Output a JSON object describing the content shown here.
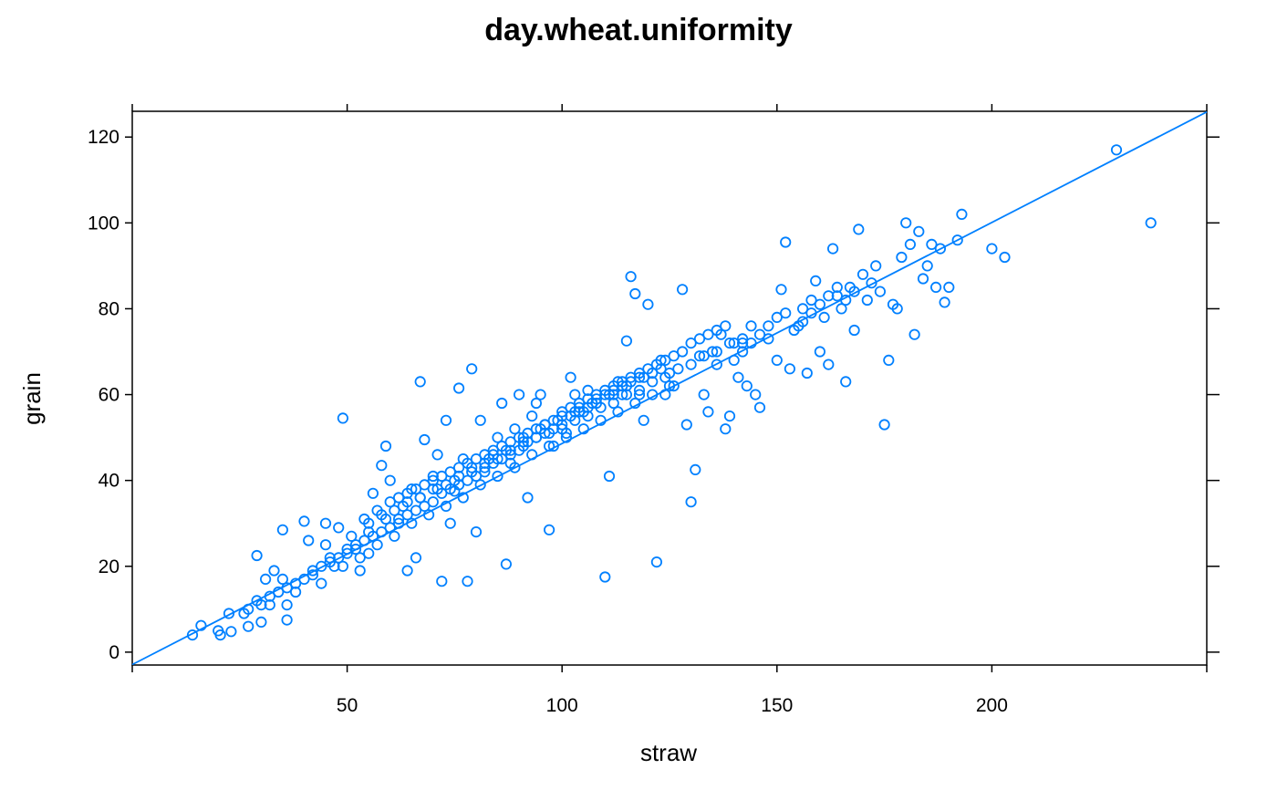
{
  "chart_data": {
    "type": "scatter",
    "title": "day.wheat.uniformity",
    "xlabel": "straw",
    "ylabel": "grain",
    "xlim": [
      0,
      250
    ],
    "ylim": [
      -3,
      126
    ],
    "x_ticks": [
      50,
      100,
      150,
      200
    ],
    "y_ticks": [
      0,
      20,
      40,
      60,
      80,
      100,
      120
    ],
    "x_tick_labels": [
      "50",
      "100",
      "150",
      "200"
    ],
    "y_tick_labels": [
      "0",
      "20",
      "40",
      "60",
      "80",
      "100",
      "120"
    ],
    "grid": false,
    "legend": "none",
    "colors": {
      "points": "#0080ff",
      "regression_line": "#0080ff",
      "axis": "#000000"
    },
    "regression_line": {
      "slope": 0.515,
      "intercept": -2.9
    },
    "series": [
      {
        "marker": "open-circle",
        "points": [
          [
            14,
            4
          ],
          [
            16,
            6.2
          ],
          [
            20,
            5
          ],
          [
            20.5,
            4
          ],
          [
            23,
            4.8
          ],
          [
            22.5,
            9
          ],
          [
            26,
            9
          ],
          [
            27,
            10
          ],
          [
            27,
            6
          ],
          [
            29,
            12
          ],
          [
            30,
            7
          ],
          [
            29,
            22.5
          ],
          [
            31,
            17
          ],
          [
            32,
            11
          ],
          [
            33,
            19
          ],
          [
            35,
            17
          ],
          [
            35,
            28.5
          ],
          [
            36,
            7.5
          ],
          [
            36,
            11
          ],
          [
            38,
            14
          ],
          [
            40,
            30.5
          ],
          [
            41,
            26
          ],
          [
            42,
            18
          ],
          [
            44,
            16
          ],
          [
            45,
            30
          ],
          [
            46,
            22
          ],
          [
            48,
            29
          ],
          [
            49,
            54.5
          ],
          [
            49,
            20
          ],
          [
            50,
            24
          ],
          [
            52,
            25
          ],
          [
            53,
            19
          ],
          [
            54,
            31
          ],
          [
            55,
            23
          ],
          [
            56,
            37
          ],
          [
            57,
            33
          ],
          [
            58,
            43.5
          ],
          [
            59,
            48
          ],
          [
            60,
            40
          ],
          [
            62,
            30
          ],
          [
            64,
            19
          ],
          [
            65,
            38
          ],
          [
            66,
            22
          ],
          [
            67,
            63
          ],
          [
            68,
            49.5
          ],
          [
            70,
            41
          ],
          [
            71,
            46
          ],
          [
            72,
            16.5
          ],
          [
            73,
            54
          ],
          [
            74,
            30
          ],
          [
            75,
            37.5
          ],
          [
            76,
            61.5
          ],
          [
            77,
            45
          ],
          [
            78,
            16.5
          ],
          [
            79,
            66
          ],
          [
            80,
            28
          ],
          [
            81,
            54
          ],
          [
            82,
            42
          ],
          [
            84,
            46
          ],
          [
            85,
            50
          ],
          [
            86,
            58
          ],
          [
            87,
            20.5
          ],
          [
            88,
            44
          ],
          [
            89,
            52
          ],
          [
            90,
            60
          ],
          [
            91,
            50
          ],
          [
            92,
            36
          ],
          [
            93,
            55
          ],
          [
            94,
            58
          ],
          [
            95,
            60
          ],
          [
            96,
            53
          ],
          [
            97,
            28.5
          ],
          [
            98,
            48
          ],
          [
            100,
            55
          ],
          [
            101,
            51
          ],
          [
            102,
            64
          ],
          [
            103,
            60
          ],
          [
            104,
            57
          ],
          [
            105,
            56
          ],
          [
            106,
            61
          ],
          [
            108,
            59
          ],
          [
            110,
            17.5
          ],
          [
            111,
            41
          ],
          [
            112,
            60
          ],
          [
            113,
            63
          ],
          [
            114,
            60
          ],
          [
            115,
            72.5
          ],
          [
            116,
            87.5
          ],
          [
            117,
            83.5
          ],
          [
            118,
            60
          ],
          [
            119,
            54
          ],
          [
            120,
            81
          ],
          [
            121,
            65
          ],
          [
            122,
            21
          ],
          [
            123,
            68
          ],
          [
            124,
            60
          ],
          [
            125,
            65
          ],
          [
            126,
            62
          ],
          [
            128,
            84.5
          ],
          [
            129,
            53
          ],
          [
            130,
            35
          ],
          [
            131,
            42.5
          ],
          [
            132,
            69
          ],
          [
            133,
            60
          ],
          [
            134,
            56
          ],
          [
            135,
            70
          ],
          [
            136,
            67
          ],
          [
            137,
            74
          ],
          [
            138,
            52
          ],
          [
            139,
            55
          ],
          [
            140,
            72
          ],
          [
            141,
            64
          ],
          [
            142,
            72
          ],
          [
            143,
            62
          ],
          [
            144,
            76
          ],
          [
            145,
            60
          ],
          [
            146,
            57
          ],
          [
            148,
            73
          ],
          [
            150,
            68
          ],
          [
            151,
            84.5
          ],
          [
            152,
            95.5
          ],
          [
            153,
            66
          ],
          [
            155,
            76
          ],
          [
            156,
            80
          ],
          [
            157,
            65
          ],
          [
            158,
            82
          ],
          [
            159,
            86.5
          ],
          [
            160,
            70
          ],
          [
            161,
            78
          ],
          [
            162,
            67
          ],
          [
            163,
            94
          ],
          [
            164,
            83
          ],
          [
            165,
            80
          ],
          [
            166,
            63
          ],
          [
            167,
            85
          ],
          [
            168,
            75
          ],
          [
            169,
            98.5
          ],
          [
            170,
            88
          ],
          [
            171,
            82
          ],
          [
            172,
            86
          ],
          [
            173,
            90
          ],
          [
            174,
            84
          ],
          [
            175,
            53
          ],
          [
            176,
            68
          ],
          [
            177,
            81
          ],
          [
            178,
            80
          ],
          [
            179,
            92
          ],
          [
            180,
            100
          ],
          [
            181,
            95
          ],
          [
            182,
            74
          ],
          [
            183,
            98
          ],
          [
            184,
            87
          ],
          [
            185,
            90
          ],
          [
            186,
            95
          ],
          [
            187,
            85
          ],
          [
            188,
            94
          ],
          [
            189,
            81.5
          ],
          [
            190,
            85
          ],
          [
            192,
            96
          ],
          [
            193,
            102
          ],
          [
            200,
            94
          ],
          [
            203,
            92
          ],
          [
            229,
            117
          ],
          [
            237,
            100
          ],
          [
            30,
            11
          ],
          [
            32,
            13
          ],
          [
            34,
            14
          ],
          [
            36,
            15
          ],
          [
            38,
            16
          ],
          [
            40,
            17
          ],
          [
            42,
            19
          ],
          [
            44,
            20
          ],
          [
            46,
            21
          ],
          [
            48,
            22
          ],
          [
            50,
            23
          ],
          [
            52,
            24
          ],
          [
            54,
            26
          ],
          [
            56,
            27
          ],
          [
            58,
            28
          ],
          [
            60,
            29
          ],
          [
            62,
            31
          ],
          [
            64,
            32
          ],
          [
            66,
            33
          ],
          [
            68,
            34
          ],
          [
            70,
            35
          ],
          [
            72,
            37
          ],
          [
            74,
            38
          ],
          [
            76,
            39
          ],
          [
            78,
            40
          ],
          [
            80,
            41
          ],
          [
            82,
            43
          ],
          [
            84,
            44
          ],
          [
            86,
            45
          ],
          [
            88,
            46
          ],
          [
            90,
            47
          ],
          [
            92,
            49
          ],
          [
            94,
            50
          ],
          [
            96,
            51
          ],
          [
            98,
            52
          ],
          [
            100,
            53
          ],
          [
            102,
            55
          ],
          [
            104,
            56
          ],
          [
            106,
            57
          ],
          [
            108,
            58
          ],
          [
            110,
            60
          ],
          [
            112,
            61
          ],
          [
            114,
            62
          ],
          [
            116,
            63
          ],
          [
            118,
            64
          ],
          [
            120,
            66
          ],
          [
            122,
            67
          ],
          [
            124,
            68
          ],
          [
            126,
            69
          ],
          [
            128,
            70
          ],
          [
            130,
            72
          ],
          [
            132,
            73
          ],
          [
            134,
            74
          ],
          [
            136,
            75
          ],
          [
            138,
            76
          ],
          [
            140,
            68
          ],
          [
            142,
            70
          ],
          [
            144,
            72
          ],
          [
            146,
            74
          ],
          [
            148,
            76
          ],
          [
            150,
            78
          ],
          [
            152,
            79
          ],
          [
            154,
            75
          ],
          [
            156,
            77
          ],
          [
            158,
            79
          ],
          [
            160,
            81
          ],
          [
            162,
            83
          ],
          [
            164,
            85
          ],
          [
            166,
            82
          ],
          [
            168,
            84
          ],
          [
            45,
            25
          ],
          [
            47,
            20
          ],
          [
            51,
            27
          ],
          [
            53,
            22
          ],
          [
            55,
            28
          ],
          [
            57,
            25
          ],
          [
            59,
            31
          ],
          [
            61,
            27
          ],
          [
            63,
            34
          ],
          [
            65,
            30
          ],
          [
            67,
            36
          ],
          [
            69,
            32
          ],
          [
            71,
            38
          ],
          [
            73,
            34
          ],
          [
            75,
            40
          ],
          [
            77,
            36
          ],
          [
            79,
            43
          ],
          [
            81,
            39
          ],
          [
            83,
            45
          ],
          [
            85,
            41
          ],
          [
            87,
            47
          ],
          [
            89,
            43
          ],
          [
            91,
            49
          ],
          [
            93,
            46
          ],
          [
            95,
            52
          ],
          [
            97,
            48
          ],
          [
            99,
            54
          ],
          [
            101,
            50
          ],
          [
            103,
            56
          ],
          [
            105,
            52
          ],
          [
            107,
            58
          ],
          [
            109,
            54
          ],
          [
            111,
            60
          ],
          [
            113,
            56
          ],
          [
            115,
            62
          ],
          [
            117,
            58
          ],
          [
            119,
            64
          ],
          [
            121,
            60
          ],
          [
            123,
            66
          ],
          [
            125,
            62
          ],
          [
            60,
            35
          ],
          [
            62,
            36
          ],
          [
            64,
            37
          ],
          [
            66,
            38
          ],
          [
            68,
            39
          ],
          [
            70,
            40
          ],
          [
            72,
            41
          ],
          [
            74,
            42
          ],
          [
            76,
            43
          ],
          [
            78,
            44
          ],
          [
            80,
            45
          ],
          [
            82,
            46
          ],
          [
            84,
            47
          ],
          [
            86,
            48
          ],
          [
            88,
            49
          ],
          [
            90,
            50
          ],
          [
            92,
            51
          ],
          [
            94,
            52
          ],
          [
            96,
            53
          ],
          [
            98,
            54
          ],
          [
            100,
            56
          ],
          [
            102,
            57
          ],
          [
            104,
            58
          ],
          [
            106,
            59
          ],
          [
            108,
            60
          ],
          [
            110,
            61
          ],
          [
            112,
            62
          ],
          [
            114,
            63
          ],
          [
            116,
            64
          ],
          [
            118,
            65
          ],
          [
            55,
            30
          ],
          [
            58,
            32
          ],
          [
            61,
            33
          ],
          [
            64,
            35
          ],
          [
            67,
            36
          ],
          [
            70,
            38
          ],
          [
            73,
            39
          ],
          [
            76,
            41
          ],
          [
            79,
            42
          ],
          [
            82,
            44
          ],
          [
            85,
            45
          ],
          [
            88,
            47
          ],
          [
            91,
            48
          ],
          [
            94,
            50
          ],
          [
            97,
            51
          ],
          [
            100,
            52
          ],
          [
            103,
            54
          ],
          [
            106,
            55
          ],
          [
            109,
            57
          ],
          [
            112,
            58
          ],
          [
            115,
            60
          ],
          [
            118,
            61
          ],
          [
            121,
            63
          ],
          [
            124,
            64
          ],
          [
            127,
            66
          ],
          [
            130,
            67
          ],
          [
            133,
            69
          ],
          [
            136,
            70
          ],
          [
            139,
            72
          ],
          [
            142,
            73
          ]
        ]
      }
    ]
  }
}
